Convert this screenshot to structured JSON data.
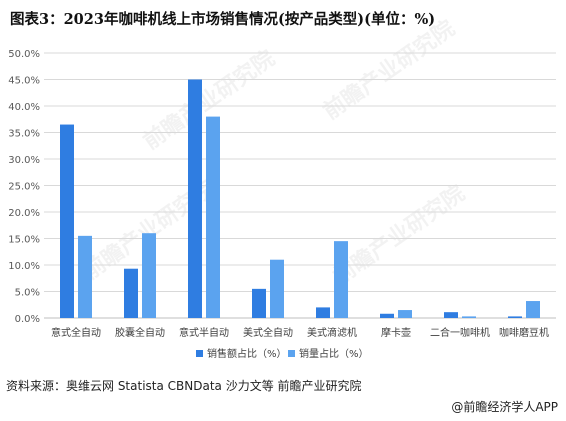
{
  "title": "图表3：2023年咖啡机线上市场销售情况(按产品类型)(单位：%)",
  "source": "资料来源：奥维云网 Statista CBNData 沙力文等 前瞻产业研究院",
  "brand": "@前瞻经济学人APP",
  "watermark": "前瞻产业研究院",
  "colors": {
    "series1": "#2f7de1",
    "series2": "#5ba3ef",
    "grid": "#d9d9d9",
    "axis": "#bfbfbf"
  },
  "chart_data": {
    "type": "bar",
    "categories": [
      "意式全自动",
      "胶囊全自动",
      "意式半自动",
      "美式全自动",
      "美式滴滤机",
      "摩卡壶",
      "二合一咖啡机",
      "咖啡磨豆机"
    ],
    "series": [
      {
        "name": "销售额占比（%）",
        "values": [
          36.5,
          9.3,
          45.0,
          5.5,
          2.0,
          0.8,
          1.1,
          0.3
        ]
      },
      {
        "name": "销量占比（%）",
        "values": [
          15.5,
          16.0,
          38.0,
          11.0,
          14.5,
          1.5,
          0.3,
          3.2
        ]
      }
    ],
    "ylim": [
      0,
      50
    ],
    "yticks": [
      "0.0%",
      "5.0%",
      "10.0%",
      "15.0%",
      "20.0%",
      "25.0%",
      "30.0%",
      "35.0%",
      "40.0%",
      "45.0%",
      "50.0%"
    ],
    "grid": true,
    "legend": "bottom-center"
  }
}
